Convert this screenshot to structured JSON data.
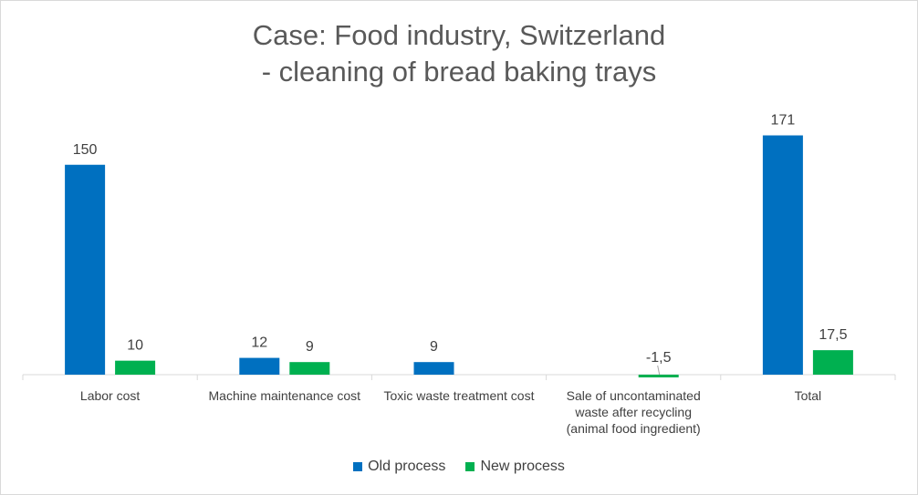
{
  "chart_data": {
    "type": "bar",
    "title_lines": [
      "Case: Food industry, Switzerland",
      "- cleaning of bread baking trays"
    ],
    "categories": [
      "Labor cost",
      "Machine maintenance cost",
      "Toxic waste treatment cost",
      "Sale of uncontaminated\nwaste after recycling\n(animal food ingredient)",
      "Total"
    ],
    "series": [
      {
        "name": "Old process",
        "color": "#0070c0",
        "values": [
          150,
          12,
          9,
          null,
          171
        ],
        "labels": [
          "150",
          "12",
          "9",
          "",
          "171"
        ]
      },
      {
        "name": "New process",
        "color": "#00b050",
        "values": [
          10,
          9,
          null,
          -1.5,
          17.5
        ],
        "labels": [
          "10",
          "9",
          "",
          "-1,5",
          "17,5"
        ]
      }
    ],
    "ylim": [
      -2,
      181
    ],
    "legend_position": "bottom",
    "grid": false
  }
}
